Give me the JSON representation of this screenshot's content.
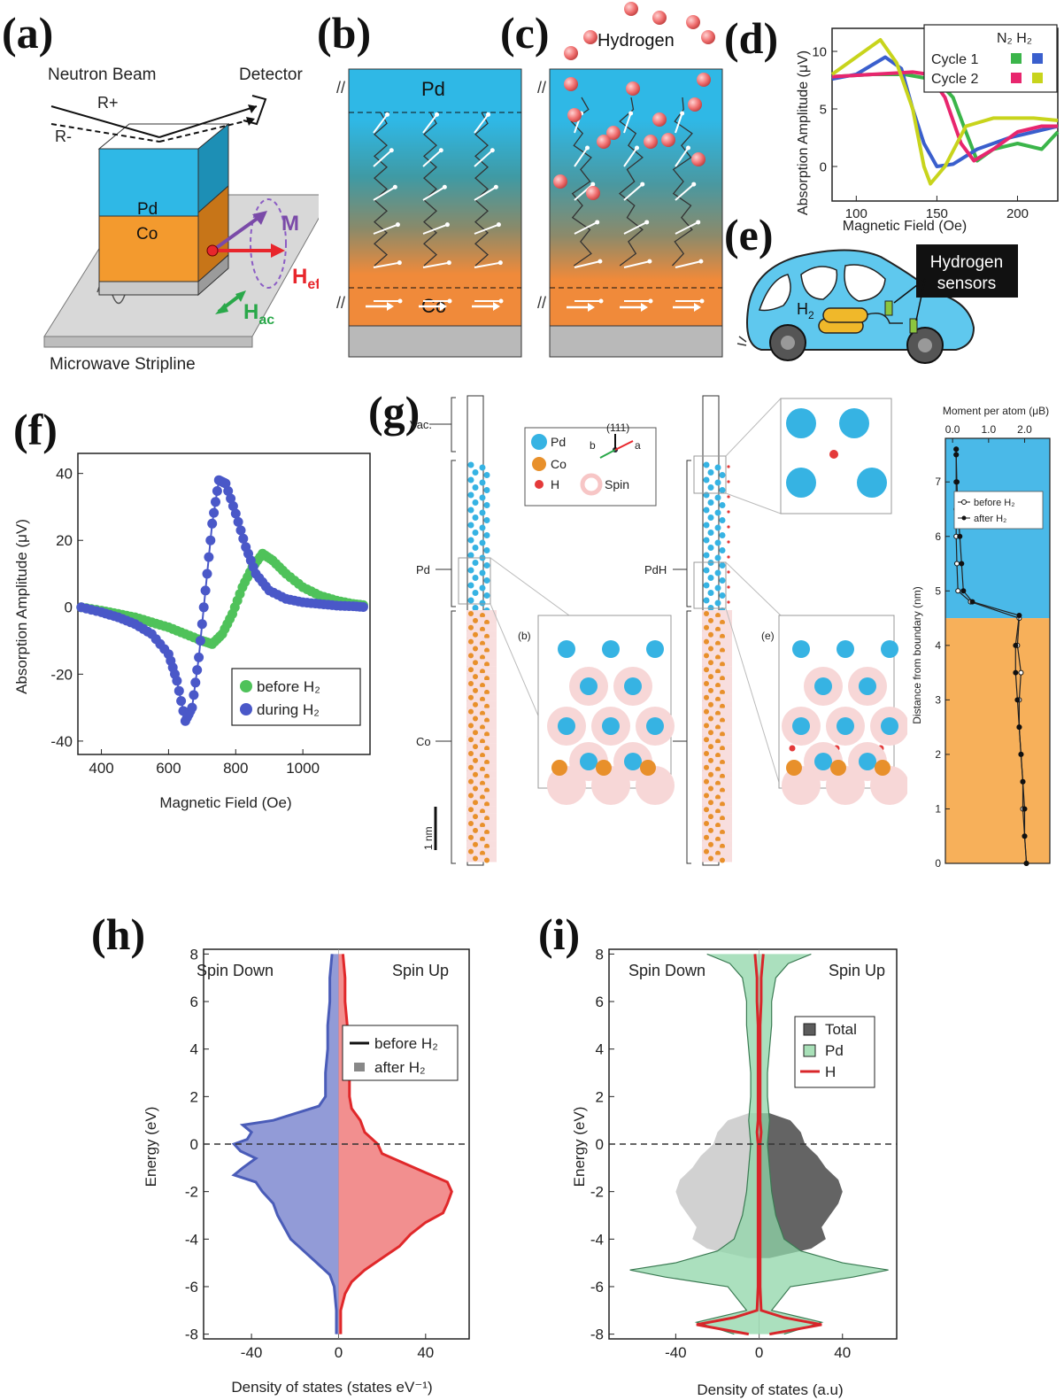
{
  "labels": {
    "a": "(a)",
    "b": "(b)",
    "c": "(c)",
    "d": "(d)",
    "e": "(e)",
    "f": "(f)",
    "g": "(g)",
    "h": "(h)",
    "i": "(i)"
  },
  "panel_a": {
    "neutron_beam": "Neutron Beam",
    "detector": "Detector",
    "r_plus": "R+",
    "r_minus": "R-",
    "pd": "Pd",
    "co": "Co",
    "m": "M",
    "heff_main": "H",
    "heff_sub": "eff",
    "hac_main": "H",
    "hac_sub": "ac",
    "stripline": "Microwave Stripline",
    "colors": {
      "pd": "#2fb8e6",
      "co": "#f39a2e",
      "heff": "#e8262c",
      "m": "#7a4aa8",
      "hac": "#2aa84a"
    }
  },
  "panel_b": {
    "pd": "Pd",
    "co": "Co"
  },
  "panel_c": {
    "hydrogen": "Hydrogen"
  },
  "panel_e": {
    "sensors_l1": "Hydrogen",
    "sensors_l2": "sensors",
    "h2": "H"
  },
  "chart_data": [
    {
      "id": "d",
      "type": "line",
      "xlabel": "Magnetic Field (Oe)",
      "ylabel": "Absorption Amplitude (μV)",
      "xlim": [
        85,
        225
      ],
      "ylim": [
        -3,
        12
      ],
      "xticks": [
        100,
        150,
        200
      ],
      "yticks": [
        0,
        5,
        10
      ],
      "legend_header": "N₂ H₂",
      "legend": [
        {
          "name": "Cycle 1",
          "n2": "#3bb54a",
          "h2": "#3a5fcd"
        },
        {
          "name": "Cycle 2",
          "n2": "#e8266e",
          "h2": "#c8d41c"
        }
      ],
      "series": [
        {
          "color": "#3bb54a",
          "points": [
            [
              85,
              7.8
            ],
            [
              110,
              8
            ],
            [
              130,
              8
            ],
            [
              150,
              7.5
            ],
            [
              160,
              6
            ],
            [
              168,
              3
            ],
            [
              175,
              0.5
            ],
            [
              185,
              1.5
            ],
            [
              200,
              2
            ],
            [
              215,
              1.5
            ],
            [
              225,
              3
            ]
          ]
        },
        {
          "color": "#3a5fcd",
          "points": [
            [
              85,
              7.6
            ],
            [
              100,
              8
            ],
            [
              118,
              9.5
            ],
            [
              128,
              8.5
            ],
            [
              135,
              5
            ],
            [
              142,
              2
            ],
            [
              150,
              0
            ],
            [
              160,
              0.2
            ],
            [
              175,
              1.5
            ],
            [
              195,
              2.5
            ],
            [
              210,
              3
            ],
            [
              225,
              3.5
            ]
          ]
        },
        {
          "color": "#e8266e",
          "points": [
            [
              85,
              7.8
            ],
            [
              110,
              8
            ],
            [
              135,
              8.2
            ],
            [
              145,
              8
            ],
            [
              155,
              6
            ],
            [
              165,
              2
            ],
            [
              173,
              0.5
            ],
            [
              185,
              1.5
            ],
            [
              200,
              3
            ],
            [
              215,
              3.5
            ],
            [
              225,
              3.5
            ]
          ]
        },
        {
          "color": "#c8d41c",
          "points": [
            [
              85,
              8
            ],
            [
              105,
              10
            ],
            [
              115,
              11
            ],
            [
              125,
              9
            ],
            [
              135,
              5
            ],
            [
              142,
              0
            ],
            [
              146,
              -1.5
            ],
            [
              155,
              0
            ],
            [
              168,
              3.5
            ],
            [
              185,
              4.2
            ],
            [
              210,
              4.2
            ],
            [
              225,
              4
            ]
          ]
        }
      ]
    },
    {
      "id": "f",
      "type": "line",
      "xlabel": "Magnetic Field (Oe)",
      "ylabel": "Absorption Amplitude (μV)",
      "xlim": [
        330,
        1200
      ],
      "ylim": [
        -44,
        46
      ],
      "xticks": [
        400,
        600,
        800,
        1000
      ],
      "yticks": [
        -40,
        -20,
        0,
        20,
        40
      ],
      "series": [
        {
          "name": "before H₂",
          "color": "#4fc25a",
          "x": [
            340,
            400,
            450,
            500,
            550,
            600,
            650,
            700,
            730,
            760,
            790,
            820,
            850,
            880,
            910,
            950,
            1000,
            1050,
            1100,
            1150,
            1190
          ],
          "y": [
            0,
            -1,
            -2,
            -3,
            -4.5,
            -6,
            -8,
            -10,
            -11,
            -8,
            -2,
            6,
            12,
            16,
            14,
            10,
            6,
            3.5,
            2,
            1,
            0.5
          ]
        },
        {
          "name": "during H₂",
          "color": "#4a58c8",
          "x": [
            340,
            400,
            450,
            500,
            550,
            600,
            625,
            650,
            670,
            690,
            710,
            730,
            750,
            770,
            800,
            830,
            860,
            900,
            950,
            1000,
            1050,
            1100,
            1150,
            1190
          ],
          "y": [
            0,
            -1.5,
            -3,
            -5,
            -8,
            -14,
            -22,
            -34,
            -30,
            -15,
            5,
            25,
            38,
            37,
            28,
            18,
            10,
            5,
            2.5,
            1.5,
            1,
            0.5,
            0.3,
            0
          ]
        }
      ]
    },
    {
      "id": "g_right",
      "type": "line",
      "title": "Moment per atom (μB)",
      "ylabel": "Distance from boundary (nm)",
      "xlim": [
        -0.2,
        2.7
      ],
      "ylim": [
        0,
        7.8
      ],
      "xticks": [
        0.0,
        1.0,
        2.0
      ],
      "xticklabels": [
        "0.0",
        "1.0",
        "2.0"
      ],
      "yticks": [
        0,
        1,
        2,
        3,
        4,
        5,
        6,
        7
      ],
      "legend": [
        "before H₂",
        "after H₂"
      ],
      "series": [
        {
          "name": "before H₂",
          "x": [
            2.05,
            2.0,
            1.95,
            1.95,
            1.9,
            1.85,
            1.85,
            1.9,
            1.8,
            1.85,
            0.5,
            0.15,
            0.12,
            0.1,
            0.1,
            0.1,
            0.1,
            0.1
          ],
          "y": [
            0,
            0.5,
            1,
            1.5,
            2,
            2.5,
            3,
            3.5,
            4,
            4.5,
            4.8,
            5,
            5.5,
            6,
            6.5,
            7,
            7.5,
            7.6
          ]
        },
        {
          "name": "after H₂",
          "x": [
            2.05,
            2.0,
            2.0,
            1.95,
            1.9,
            1.85,
            1.8,
            1.75,
            1.75,
            1.85,
            0.55,
            0.3,
            0.25,
            0.2,
            0.15,
            0.12,
            0.1,
            0.1
          ],
          "y": [
            0,
            0.5,
            1,
            1.5,
            2,
            2.5,
            3,
            3.5,
            4,
            4.55,
            4.8,
            5,
            5.5,
            6,
            6.5,
            7,
            7.5,
            7.6
          ]
        }
      ]
    },
    {
      "id": "h",
      "type": "area",
      "xlabel": "Density of states (states eV⁻¹)",
      "ylabel": "Energy (eV)",
      "xlim": [
        -62,
        60
      ],
      "ylim": [
        -8.2,
        8.2
      ],
      "xticks": [
        -40,
        0,
        40
      ],
      "yticks": [
        -8,
        -6,
        -4,
        -2,
        0,
        2,
        4,
        6,
        8
      ],
      "left_annotation": "Spin Down",
      "right_annotation": "Spin Up",
      "legend": [
        "before H₂",
        "after H₂"
      ],
      "series": [
        {
          "name": "spin_down",
          "color": "#4a5cb8",
          "fill": "#7f8ad0",
          "e": [
            8,
            7,
            6,
            5,
            4,
            3,
            2,
            1.6,
            1,
            0.8,
            0.5,
            0.2,
            0,
            -0.3,
            -0.6,
            -1,
            -1.3,
            -1.6,
            -2,
            -2.5,
            -3,
            -3.5,
            -4,
            -4.5,
            -5,
            -5.5,
            -6,
            -7,
            -8
          ],
          "d": [
            -3,
            -4,
            -4,
            -5,
            -5,
            -6,
            -6,
            -9,
            -30,
            -44,
            -40,
            -42,
            -48,
            -45,
            -38,
            -44,
            -48,
            -38,
            -35,
            -30,
            -28,
            -25,
            -22,
            -16,
            -10,
            -4,
            -2,
            -1,
            -1
          ]
        },
        {
          "name": "spin_up",
          "color": "#e0282a",
          "fill": "#f07b7b",
          "e": [
            8,
            7,
            6,
            5,
            4,
            3,
            2,
            1.5,
            1,
            0.5,
            0,
            -0.4,
            -0.8,
            -1.2,
            -1.6,
            -2,
            -2.5,
            -2.9,
            -3.3,
            -3.8,
            -4.3,
            -4.8,
            -5.3,
            -5.8,
            -6.3,
            -7,
            -8
          ],
          "d": [
            2,
            3,
            3,
            4,
            4,
            5,
            5,
            6,
            10,
            12,
            18,
            20,
            30,
            40,
            50,
            52,
            50,
            48,
            40,
            33,
            28,
            20,
            12,
            6,
            3,
            1,
            1
          ]
        }
      ]
    },
    {
      "id": "i",
      "type": "area",
      "xlabel": "Density of states (a.u)",
      "ylabel": "Energy (eV)",
      "xlim": [
        -72,
        66
      ],
      "ylim": [
        -8.2,
        8.2
      ],
      "xticks": [
        -40,
        0,
        40
      ],
      "yticks": [
        -8,
        -6,
        -4,
        -2,
        0,
        2,
        4,
        6,
        8
      ],
      "left_annotation": "Spin Down",
      "right_annotation": "Spin Up",
      "legend": [
        "Total",
        "Pd",
        "H"
      ],
      "series": [
        {
          "name": "Total",
          "fill": "#5c5c5c",
          "e": [
            1.3,
            1,
            0.5,
            0,
            -0.5,
            -1,
            -1.5,
            -2,
            -2.5,
            -3,
            -3.5,
            -4,
            -4.4,
            -4.8
          ],
          "d": [
            5,
            15,
            20,
            22,
            28,
            32,
            38,
            40,
            38,
            34,
            30,
            32,
            25,
            5
          ]
        },
        {
          "name": "Pd",
          "fill": "#8fd5a8",
          "e": [
            8,
            7.6,
            7,
            6,
            5,
            4,
            3,
            2,
            1,
            0,
            -1,
            -2,
            -3,
            -4,
            -4.5,
            -5,
            -5.3,
            -5.6,
            -6,
            -7,
            -7.5,
            -8
          ],
          "d": [
            25,
            14,
            8,
            6,
            6,
            5,
            4,
            4,
            5,
            4,
            5,
            6,
            8,
            12,
            20,
            40,
            62,
            45,
            15,
            6,
            30,
            12
          ]
        },
        {
          "name": "H",
          "color": "#d8262a",
          "e": [
            8,
            7,
            6,
            5,
            4,
            3,
            2,
            1,
            0.5,
            0,
            -1,
            -2,
            -3,
            -4,
            -5,
            -6,
            -7,
            -7.3,
            -7.6,
            -8
          ],
          "d": [
            2,
            1,
            1,
            0.5,
            0.5,
            0.5,
            0.5,
            0.5,
            1,
            0.5,
            0.5,
            0.5,
            0.5,
            0.5,
            0.5,
            0.5,
            1,
            12,
            30,
            5
          ]
        }
      ]
    }
  ],
  "panel_g": {
    "vac": "Vac.",
    "pd": "Pd",
    "pdh": "PdH",
    "co": "Co",
    "scale": "1 nm",
    "legend_pd": "Pd",
    "legend_co": "Co",
    "legend_h": "H",
    "legend_spin": "Spin",
    "axis_111": "(111)",
    "axis_a": "a",
    "axis_b": "b",
    "inset_b": "(b)",
    "inset_e": "(e)",
    "colors": {
      "pd": "#36b3e3",
      "co": "#e8902b",
      "h": "#e43a3a",
      "spin": "#f7c6c6",
      "pd_bg": "#4ab9e8",
      "co_bg": "#f7b05a"
    }
  }
}
